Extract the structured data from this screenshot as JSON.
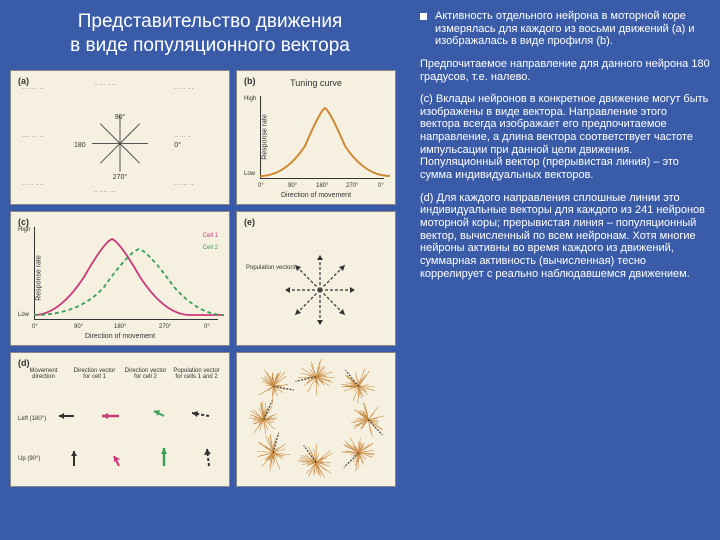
{
  "title": {
    "line1": "Представительство движения",
    "line2": "в виде популяционного вектора"
  },
  "right": {
    "p1": "Активность отдельного нейрона в моторной коре измерялась для каждого из восьми движений (a) и изображалась в виде профиля (b).",
    "p2": "Предпочитаемое направление для данного нейрона 180 градусов, т.е. налево.",
    "p3": "(c) Вклады нейронов в конкретное движение могут быть изображены в виде вектора. Направление этого вектора всегда изображает его предпочитаемое направление, а длина вектора соответствует частоте импульсации при данной цели движения. Популяционный вектор (прерывистая линия) – это сумма индивидуальных векторов.",
    "p4": "(d) Для каждого направления сплошные линии это индивидуальные векторы для каждого из 241 нейронов моторной коры; прерывистая линия – популяционный вектор, вычисленный по всем нейронам. Хотя многие нейроны активны во время каждого из движений, суммарная активность (вычисленная) тесно коррелирует с реально наблюдавшемся движением."
  },
  "figA": {
    "label": "(a)",
    "angles": {
      "a0": "0°",
      "a90": "90°",
      "a180": "180",
      "a270": "270°"
    }
  },
  "figB": {
    "label": "(b)",
    "title": "Tuning curve",
    "ylabel": "Response rate",
    "xlabel": "Direction of movement",
    "yHigh": "High",
    "yLow": "Low",
    "xticks": [
      "0°",
      "90°",
      "180°",
      "270°",
      "0°"
    ],
    "curve_color": "#d08830"
  },
  "figC": {
    "label": "(c)",
    "ylabel": "Response rate",
    "xlabel": "Direction of movement",
    "yHigh": "High",
    "yLow": "Low",
    "xticks": [
      "0°",
      "90°",
      "180°",
      "270°",
      "0°"
    ],
    "legend1": "Cell 1",
    "legend2": "Cell 2",
    "c1_color": "#c93a7a",
    "c2_color": "#3aa05a"
  },
  "figD": {
    "label": "(d)",
    "row1": [
      "Movement direction",
      "Direction vector for cell 1",
      "Direction vector for cell 2",
      "Population vector for cells 1 and 2"
    ],
    "dirLeft": "Left (180°)",
    "dirUp": "Up (90°)",
    "c1_color": "#c93a7a",
    "c2_color": "#3aa05a",
    "pop_color": "#333333"
  },
  "figE": {
    "label": "(e)",
    "popvec_label": "Population vectors",
    "burst_color": "#c98a40"
  }
}
